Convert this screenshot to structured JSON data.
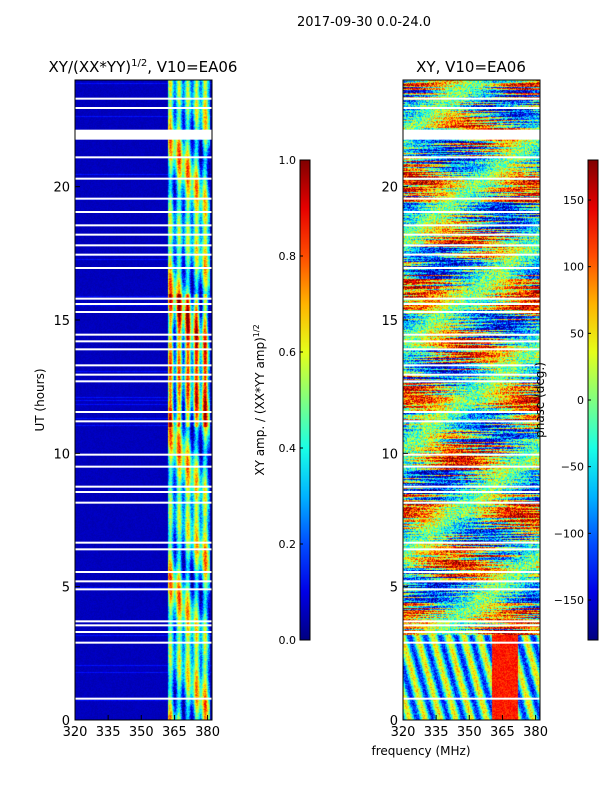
{
  "chart_data": {
    "suptitle": "2017-09-30 0.0-24.0",
    "xlabel": "frequency (MHz)",
    "panels": [
      {
        "type": "heatmap",
        "title_main": "XY/(XX*YY)",
        "title_sup": "1/2",
        "title_rest": ", V10=EA06",
        "ylabel": "UT (hours)",
        "xlim": [
          320,
          382
        ],
        "ylim": [
          0,
          24
        ],
        "xticks": [
          320,
          335,
          350,
          365,
          380
        ],
        "yticks": [
          0,
          5,
          10,
          15,
          20
        ],
        "colorbar": {
          "label_main": "XY amp. / (XX*YY amp)",
          "label_sup": "1/2",
          "range": [
            0.0,
            1.0
          ],
          "ticks": [
            "0.0",
            "0.2",
            "0.4",
            "0.6",
            "0.8",
            "1.0"
          ]
        },
        "description_values": {
          "background_level": 0.05,
          "signal_band_mhz": [
            362,
            381
          ],
          "peak_level": 0.85
        }
      },
      {
        "type": "heatmap",
        "title_main": "XY, V10=EA06",
        "ylabel": "",
        "xlim": [
          320,
          382
        ],
        "ylim": [
          0,
          24
        ],
        "xticks": [
          320,
          335,
          350,
          365,
          380
        ],
        "yticks": [
          0,
          5,
          10,
          15,
          20
        ],
        "colorbar": {
          "label_main": "phase (deg.)",
          "range": [
            -180,
            180
          ],
          "ticks": [
            "-150",
            "-100",
            "-50",
            "0",
            "50",
            "100",
            "150"
          ]
        }
      }
    ],
    "flagged_rows_hours": [
      0.8,
      2.9,
      3.3,
      3.55,
      3.7,
      4.9,
      5.2,
      5.55,
      6.4,
      6.65,
      8.15,
      8.55,
      8.75,
      9.5,
      9.95,
      11.2,
      11.55,
      12.7,
      12.95,
      13.3,
      13.9,
      14.2,
      14.45,
      15.3,
      15.6,
      15.8,
      16.95,
      17.45,
      17.8,
      18.2,
      18.55,
      19.05,
      19.55,
      20.3,
      21.1,
      21.95,
      22.1,
      22.95,
      23.3
    ]
  }
}
